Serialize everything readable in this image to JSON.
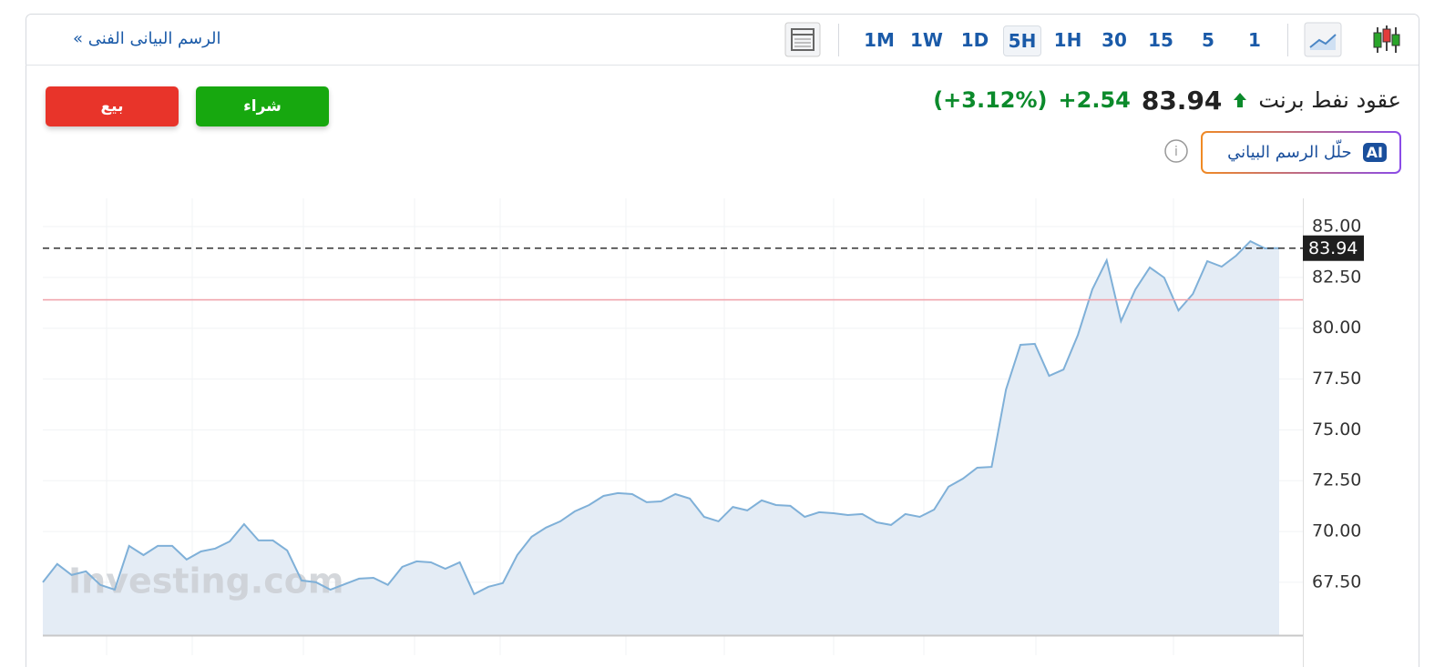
{
  "toolbar": {
    "technical_link": "الرسم البيانى الفنى »",
    "intervals": [
      "1M",
      "1W",
      "1D",
      "5H",
      "1H",
      "30",
      "15",
      "5",
      "1"
    ],
    "active_interval": "5H"
  },
  "header": {
    "instrument": "عقود نفط برنت",
    "price": "83.94",
    "change": "+2.54",
    "change_percent": "(+3.12%)"
  },
  "buttons": {
    "buy": "شراء",
    "sell": "بيع",
    "ai_badge": "AI",
    "ai": "حلّل الرسم البياني"
  },
  "chart_data": {
    "type": "area",
    "color": "#7fb0d8",
    "fill": "#e4ecf5",
    "watermark": "Investing.com",
    "values": [
      67.5,
      68.4,
      67.86,
      68.04,
      67.37,
      67.14,
      69.29,
      68.84,
      69.29,
      69.29,
      68.62,
      69.02,
      69.16,
      69.51,
      70.36,
      69.56,
      69.56,
      69.07,
      67.59,
      67.5,
      67.14,
      67.41,
      67.68,
      67.72,
      67.37,
      68.26,
      68.53,
      68.48,
      68.17,
      68.48,
      66.92,
      67.28,
      67.46,
      68.84,
      69.74,
      70.19,
      70.5,
      70.99,
      71.3,
      71.75,
      71.89,
      71.84,
      71.44,
      71.48,
      71.84,
      71.62,
      70.72,
      70.5,
      71.21,
      71.04,
      71.53,
      71.3,
      71.26,
      70.72,
      70.95,
      70.9,
      70.81,
      70.86,
      70.45,
      70.32,
      70.86,
      70.72,
      71.08,
      72.2,
      72.6,
      73.14,
      73.18,
      76.99,
      79.18,
      79.23,
      77.66,
      77.97,
      79.67,
      81.91,
      83.34,
      80.35,
      81.91,
      82.99,
      82.49,
      80.88,
      81.69,
      83.3,
      83.03,
      83.57,
      84.28,
      83.93,
      83.94
    ],
    "ylim": [
      64.9,
      86.39
    ],
    "yticks": [
      {
        "value": 67.5,
        "label": "67.50"
      },
      {
        "value": 70,
        "label": "70.00"
      },
      {
        "value": 72.5,
        "label": "72.50"
      },
      {
        "value": 75,
        "label": "75.00"
      },
      {
        "value": 77.5,
        "label": "77.50"
      },
      {
        "value": 80,
        "label": "80.00"
      },
      {
        "value": 82.5,
        "label": "82.50"
      },
      {
        "value": 85,
        "label": "85.00"
      }
    ],
    "last_price": 83.94,
    "reference_line": 81.4
  }
}
